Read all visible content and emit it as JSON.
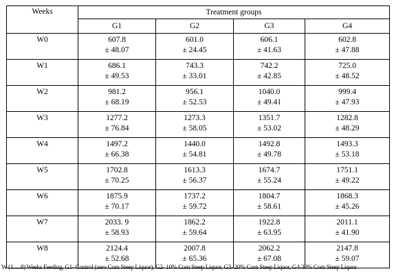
{
  "table": {
    "weeks_header": "Weeks",
    "treatment_header": "Treatment groups",
    "groups": [
      "G1",
      "G2",
      "G3",
      "G4"
    ],
    "rows": [
      {
        "week": "W0",
        "cells": [
          [
            "607.8",
            "± 48.07"
          ],
          [
            "601.0",
            "± 24.45"
          ],
          [
            "606.1",
            "± 41.63"
          ],
          [
            "602.8",
            "± 47.88"
          ]
        ]
      },
      {
        "week": "W1",
        "cells": [
          [
            "686.1",
            "± 49.53"
          ],
          [
            "743.3",
            "± 33.01"
          ],
          [
            "742.2",
            "± 42.85"
          ],
          [
            "725.0",
            "± 48.52"
          ]
        ]
      },
      {
        "week": "W2",
        "cells": [
          [
            "981.2",
            "± 68.19"
          ],
          [
            "956.1",
            "± 52.53"
          ],
          [
            "1040.0",
            "± 49.41"
          ],
          [
            "999.4",
            "± 47.93"
          ]
        ]
      },
      {
        "week": "W3",
        "cells": [
          [
            "1277.2",
            "± 76.84"
          ],
          [
            "1273.3",
            "± 58.05"
          ],
          [
            "1351.7",
            "± 53.02"
          ],
          [
            "1282.8",
            "± 48.29"
          ]
        ]
      },
      {
        "week": "W4",
        "cells": [
          [
            "1497.2",
            "± 66.38"
          ],
          [
            "1440.0",
            "± 54.81"
          ],
          [
            "1492.8",
            "± 49.78"
          ],
          [
            "1493.3",
            "± 53.18"
          ]
        ]
      },
      {
        "week": "W5",
        "cells": [
          [
            "1702.8",
            "± 70.25"
          ],
          [
            "1613.3",
            "± 56.37"
          ],
          [
            "1674.7",
            "± 55.24"
          ],
          [
            "1751.1",
            "± 49.22"
          ]
        ]
      },
      {
        "week": "W6",
        "cells": [
          [
            "1875.9",
            "± 70.17"
          ],
          [
            "1737.2",
            "± 59.72"
          ],
          [
            "1804.7",
            "± 58.61"
          ],
          [
            "1868.3",
            "± 45.26"
          ]
        ]
      },
      {
        "week": "W7",
        "cells": [
          [
            "2033.  9",
            "± 58.93"
          ],
          [
            "1862.2",
            "± 59.64"
          ],
          [
            "1922.8",
            "± 63.95"
          ],
          [
            "2011.1",
            "± 41.90"
          ]
        ]
      },
      {
        "week": "W8",
        "cells": [
          [
            "2124.4",
            "± 52.68"
          ],
          [
            "2007.8",
            "± 65.36"
          ],
          [
            "2062.2",
            "± 67.08"
          ],
          [
            "2147.8",
            "± 59.07"
          ]
        ]
      }
    ]
  },
  "footnote": "W (1….8) Weeks Feeding, G1- Control (zero Corn Steep Liquor), G2- 10% Corn Steep Liquor, G3- 20% Corn Steep Liquor, G4-30% Corn Steep Liquor"
}
